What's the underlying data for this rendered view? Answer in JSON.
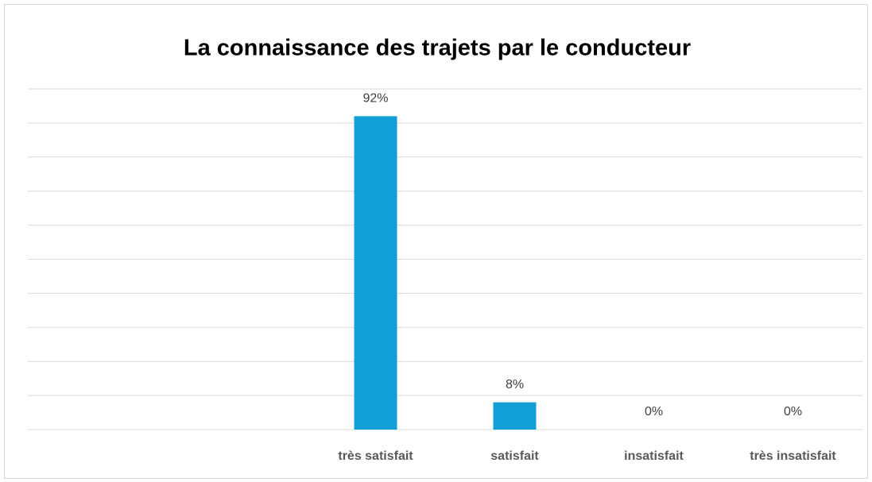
{
  "chart_data": {
    "type": "bar",
    "title": "La connaissance des trajets par le conducteur",
    "categories": [
      null,
      null,
      "très satisfait",
      "satisfait",
      "insatisfait",
      "très insatisfait"
    ],
    "values": [
      null,
      null,
      92,
      8,
      0,
      0
    ],
    "value_labels": [
      null,
      null,
      "92%",
      "8%",
      "0%",
      "0%"
    ],
    "color": "#119fd8",
    "ylim": [
      0,
      100
    ],
    "yticks": [
      0,
      10,
      20,
      30,
      40,
      50,
      60,
      70,
      80,
      90,
      100
    ],
    "grid": true
  }
}
